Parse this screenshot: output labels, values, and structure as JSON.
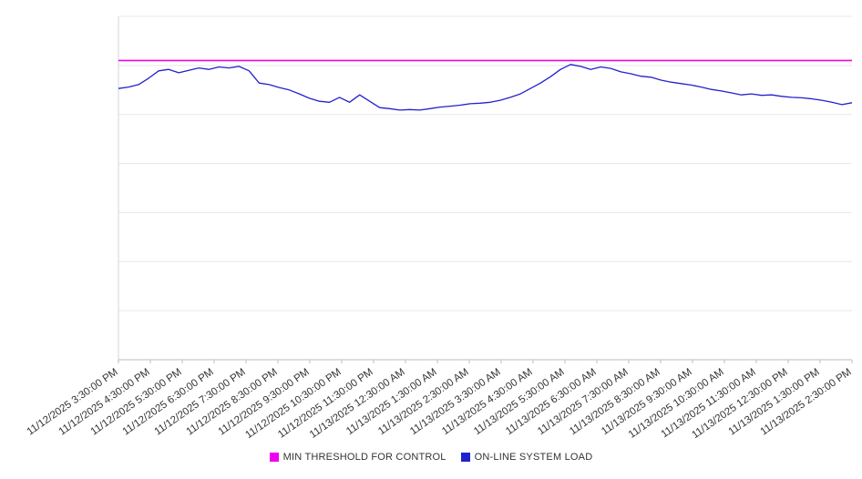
{
  "chart_data": {
    "type": "line",
    "title": "",
    "xlabel": "",
    "ylabel": "",
    "x_labels": [
      "11/12/2025 3:30:00 PM",
      "11/12/2025 4:30:00 PM",
      "11/12/2025 5:30:00 PM",
      "11/12/2025 6:30:00 PM",
      "11/12/2025 7:30:00 PM",
      "11/12/2025 8:30:00 PM",
      "11/12/2025 9:30:00 PM",
      "11/12/2025 10:30:00 PM",
      "11/12/2025 11:30:00 PM",
      "11/13/2025 12:30:00 AM",
      "11/13/2025 1:30:00 AM",
      "11/13/2025 2:30:00 AM",
      "11/13/2025 3:30:00 AM",
      "11/13/2025 4:30:00 AM",
      "11/13/2025 5:30:00 AM",
      "11/13/2025 6:30:00 AM",
      "11/13/2025 7:30:00 AM",
      "11/13/2025 8:30:00 AM",
      "11/13/2025 9:30:00 AM",
      "11/13/2025 10:30:00 AM",
      "11/13/2025 11:30:00 AM",
      "11/13/2025 12:30:00 PM",
      "11/13/2025 1:30:00 PM",
      "11/13/2025 2:30:00 PM"
    ],
    "ylim": [
      0,
      70
    ],
    "grid_step": 10,
    "y_axis_labels_visible": false,
    "grid": true,
    "legend_position": "bottom",
    "series": [
      {
        "name": "MIN THRESHOLD FOR CONTROL",
        "type": "threshold",
        "color": "#ee00ee",
        "value": 61
      },
      {
        "name": "ON-LINE SYSTEM LOAD",
        "type": "line",
        "color": "#2222cc",
        "values": [
          55.3,
          55.6,
          56.1,
          57.4,
          58.9,
          59.2,
          58.5,
          59.0,
          59.5,
          59.2,
          59.7,
          59.5,
          59.8,
          58.9,
          56.4,
          56.1,
          55.5,
          55.0,
          54.2,
          53.3,
          52.7,
          52.5,
          53.5,
          52.5,
          54.0,
          52.7,
          51.4,
          51.2,
          50.9,
          51.0,
          50.9,
          51.2,
          51.5,
          51.7,
          51.9,
          52.2,
          52.3,
          52.5,
          52.9,
          53.5,
          54.2,
          55.3,
          56.4,
          57.7,
          59.2,
          60.2,
          59.8,
          59.2,
          59.7,
          59.4,
          58.7,
          58.3,
          57.8,
          57.6,
          57.0,
          56.6,
          56.3,
          56.0,
          55.6,
          55.1,
          54.8,
          54.4,
          54.0,
          54.2,
          53.9,
          54.0,
          53.7,
          53.5,
          53.4,
          53.2,
          52.9,
          52.5,
          52.0,
          52.4
        ]
      }
    ]
  }
}
